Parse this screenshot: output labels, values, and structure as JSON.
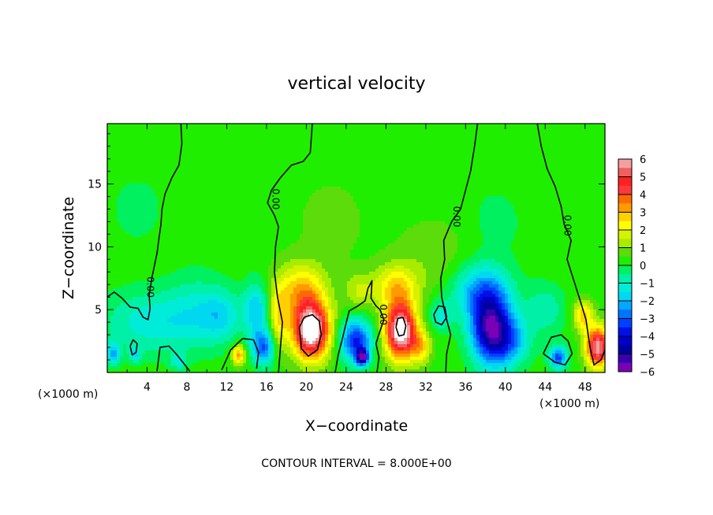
{
  "chart_data": {
    "type": "heatmap",
    "title": "vertical velocity",
    "xlabel": "X−coordinate",
    "ylabel": "Z−coordinate",
    "x_unit_label_left": "(×1000 m)",
    "x_unit_label_right": "(×1000 m)",
    "footer": "CONTOUR INTERVAL = 8.000E+00",
    "xlim": [
      0,
      50
    ],
    "ylim": [
      0,
      19.8
    ],
    "x_ticks": [
      4,
      8,
      12,
      16,
      20,
      24,
      28,
      32,
      36,
      40,
      44,
      48
    ],
    "y_ticks": [
      5,
      10,
      15
    ],
    "colorbar": {
      "range": [
        -6,
        6
      ],
      "tick_labels": [
        "6",
        "5",
        "4",
        "3",
        "2",
        "1",
        "0",
        "−1",
        "−2",
        "−3",
        "−4",
        "−5",
        "−6"
      ],
      "levels": [
        {
          "from": 5.5,
          "to": 6,
          "color": "#f4a0a0"
        },
        {
          "from": 5,
          "to": 5.5,
          "color": "#f06060"
        },
        {
          "from": 4.5,
          "to": 5,
          "color": "#ff2020"
        },
        {
          "from": 4,
          "to": 4.5,
          "color": "#ff3838"
        },
        {
          "from": 3.5,
          "to": 4,
          "color": "#ff6a00"
        },
        {
          "from": 3,
          "to": 3.5,
          "color": "#ff9a00"
        },
        {
          "from": 2.5,
          "to": 3,
          "color": "#ffd000"
        },
        {
          "from": 2,
          "to": 2.5,
          "color": "#ffff00"
        },
        {
          "from": 1.5,
          "to": 2,
          "color": "#d6f200"
        },
        {
          "from": 1,
          "to": 1.5,
          "color": "#a8ec00"
        },
        {
          "from": 0.5,
          "to": 1,
          "color": "#5cdc0a"
        },
        {
          "from": 0,
          "to": 0.5,
          "color": "#20ee00"
        },
        {
          "from": -0.5,
          "to": 0,
          "color": "#00f060"
        },
        {
          "from": -1,
          "to": -0.5,
          "color": "#00f0a8"
        },
        {
          "from": -1.5,
          "to": -1,
          "color": "#00ecd8"
        },
        {
          "from": -2,
          "to": -1.5,
          "color": "#00d8f0"
        },
        {
          "from": -2.5,
          "to": -2,
          "color": "#00a8ff"
        },
        {
          "from": -3,
          "to": -2.5,
          "color": "#0074ff"
        },
        {
          "from": -3.5,
          "to": -3,
          "color": "#0040ff"
        },
        {
          "from": -4,
          "to": -3.5,
          "color": "#0010e8"
        },
        {
          "from": -4.5,
          "to": -4,
          "color": "#0000c8"
        },
        {
          "from": -5,
          "to": -4.5,
          "color": "#0000a0"
        },
        {
          "from": -5.5,
          "to": -5,
          "color": "#3800b0"
        },
        {
          "from": -6,
          "to": -5.5,
          "color": "#7a00b8"
        }
      ],
      "overflow_high_color": "#ffffff"
    },
    "background_value": 0.3,
    "features": [
      {
        "x": 20.5,
        "z": 3.3,
        "amp": 6.8,
        "sx": 1.8,
        "sz": 2.2
      },
      {
        "x": 19.5,
        "z": 6.5,
        "amp": 2.6,
        "sx": 2.5,
        "sz": 2.2
      },
      {
        "x": 17.2,
        "z": 4.2,
        "amp": 2.0,
        "sx": 1.0,
        "sz": 2.5
      },
      {
        "x": 29.5,
        "z": 3.3,
        "amp": 6.5,
        "sx": 1.6,
        "sz": 2.2
      },
      {
        "x": 29.0,
        "z": 6.8,
        "amp": 2.2,
        "sx": 2.2,
        "sz": 1.8
      },
      {
        "x": 31.5,
        "z": 2.0,
        "amp": 2.0,
        "sx": 1.0,
        "sz": 1.3
      },
      {
        "x": 49.3,
        "z": 2.0,
        "amp": 5.5,
        "sx": 1.2,
        "sz": 1.6
      },
      {
        "x": 47.8,
        "z": 4.5,
        "amp": 2.5,
        "sx": 1.0,
        "sz": 1.2
      },
      {
        "x": 13.2,
        "z": 1.4,
        "amp": 3.0,
        "sx": 0.7,
        "sz": 0.8
      },
      {
        "x": 25.3,
        "z": 6.5,
        "amp": 1.2,
        "sx": 1.5,
        "sz": 1.5
      },
      {
        "x": 33.0,
        "z": 9.0,
        "amp": 0.6,
        "sx": 4.0,
        "sz": 3.0
      },
      {
        "x": 38.5,
        "z": 3.5,
        "amp": -5.2,
        "sx": 2.0,
        "sz": 2.8
      },
      {
        "x": 37.5,
        "z": 6.5,
        "amp": -2.4,
        "sx": 3.0,
        "sz": 2.2
      },
      {
        "x": 40.5,
        "z": 2.5,
        "amp": -2.2,
        "sx": 2.0,
        "sz": 2.0
      },
      {
        "x": 25.0,
        "z": 2.5,
        "amp": -4.0,
        "sx": 1.6,
        "sz": 1.7
      },
      {
        "x": 25.6,
        "z": 1.2,
        "amp": -5.0,
        "sx": 0.6,
        "sz": 0.6
      },
      {
        "x": 15.0,
        "z": 5.0,
        "amp": -2.2,
        "sx": 1.3,
        "sz": 2.2
      },
      {
        "x": 15.7,
        "z": 2.0,
        "amp": -3.2,
        "sx": 1.2,
        "sz": 1.4
      },
      {
        "x": 4.5,
        "z": 4.0,
        "amp": -1.6,
        "sx": 5.0,
        "sz": 2.5
      },
      {
        "x": 9.0,
        "z": 5.0,
        "amp": -1.0,
        "sx": 3.0,
        "sz": 3.0
      },
      {
        "x": 11.5,
        "z": 4.5,
        "amp": -1.5,
        "sx": 2.0,
        "sz": 2.0
      },
      {
        "x": 33.5,
        "z": 4.5,
        "amp": -1.4,
        "sx": 1.2,
        "sz": 1.2
      },
      {
        "x": 45.3,
        "z": 1.2,
        "amp": -3.5,
        "sx": 0.9,
        "sz": 0.9
      },
      {
        "x": 44.0,
        "z": 5.0,
        "amp": -1.2,
        "sx": 2.0,
        "sz": 2.0
      },
      {
        "x": 0.6,
        "z": 1.5,
        "amp": -2.2,
        "sx": 0.7,
        "sz": 0.9
      },
      {
        "x": 2.8,
        "z": 1.4,
        "amp": -1.5,
        "sx": 0.6,
        "sz": 0.6
      },
      {
        "x": 7.2,
        "z": 0.9,
        "amp": -1.4,
        "sx": 0.8,
        "sz": 0.6
      },
      {
        "x": 22.5,
        "z": 12.0,
        "amp": 0.5,
        "sx": 3.0,
        "sz": 3.0
      },
      {
        "x": 3.0,
        "z": 13.0,
        "amp": -0.5,
        "sx": 3.0,
        "sz": 3.0
      },
      {
        "x": 39.0,
        "z": 12.0,
        "amp": -0.5,
        "sx": 3.0,
        "sz": 3.0
      }
    ],
    "contour_label": "0.00",
    "contour_lines": [
      [
        [
          0,
          6.0
        ],
        [
          0.7,
          6.4
        ],
        [
          1.5,
          5.9
        ],
        [
          2.3,
          5.2
        ],
        [
          3.1,
          5.1
        ],
        [
          3.6,
          4.4
        ],
        [
          4.1,
          4.2
        ],
        [
          4.3,
          5.1
        ],
        [
          4.2,
          6.2
        ],
        [
          4.5,
          7.6
        ],
        [
          5.0,
          9.5
        ],
        [
          5.2,
          10.7
        ],
        [
          5.4,
          11.8
        ],
        [
          5.5,
          13.0
        ],
        [
          5.8,
          14.2
        ],
        [
          6.5,
          15.5
        ],
        [
          7.2,
          16.5
        ],
        [
          7.5,
          18.2
        ],
        [
          7.4,
          19.8
        ]
      ],
      [
        [
          17.2,
          0
        ],
        [
          17.4,
          2.0
        ],
        [
          17.6,
          4.0
        ],
        [
          17.1,
          6.0
        ],
        [
          16.8,
          8.0
        ],
        [
          16.9,
          10.0
        ],
        [
          17.2,
          11.6
        ],
        [
          16.8,
          12.5
        ],
        [
          16.1,
          13.5
        ],
        [
          16.5,
          14.5
        ],
        [
          17.4,
          15.5
        ],
        [
          18.5,
          16.5
        ],
        [
          19.7,
          16.8
        ],
        [
          20.4,
          17.5
        ],
        [
          20.6,
          19.8
        ]
      ],
      [
        [
          22.9,
          0
        ],
        [
          23.2,
          1.4
        ],
        [
          23.6,
          2.6
        ],
        [
          23.9,
          3.6
        ],
        [
          24.3,
          4.9
        ],
        [
          25.2,
          5.3
        ],
        [
          25.9,
          5.7
        ],
        [
          26.2,
          6.7
        ],
        [
          26.6,
          7.3
        ],
        [
          26.5,
          5.9
        ],
        [
          27.0,
          5.3
        ],
        [
          27.4,
          5.0
        ],
        [
          27.8,
          4.2
        ],
        [
          27.4,
          3.3
        ],
        [
          27.0,
          2.3
        ],
        [
          27.3,
          1.2
        ],
        [
          27.1,
          0
        ]
      ],
      [
        [
          34.0,
          0
        ],
        [
          34.1,
          1.5
        ],
        [
          34.5,
          3.0
        ],
        [
          34.0,
          4.5
        ],
        [
          33.6,
          6.0
        ],
        [
          33.5,
          7.5
        ],
        [
          33.9,
          9.0
        ],
        [
          33.8,
          10.5
        ],
        [
          34.6,
          12.0
        ],
        [
          35.5,
          13.0
        ],
        [
          36.0,
          14.5
        ],
        [
          36.5,
          16.0
        ],
        [
          36.9,
          18.0
        ],
        [
          37.2,
          19.8
        ]
      ],
      [
        [
          43.2,
          19.8
        ],
        [
          43.6,
          18.0
        ],
        [
          44.2,
          16.2
        ],
        [
          45.0,
          14.8
        ],
        [
          45.6,
          13.2
        ],
        [
          45.9,
          11.8
        ],
        [
          46.6,
          10.5
        ],
        [
          46.2,
          9.0
        ],
        [
          46.8,
          7.5
        ],
        [
          47.6,
          5.5
        ],
        [
          48.1,
          4.2
        ],
        [
          48.5,
          2.0
        ],
        [
          48.9,
          0.6
        ],
        [
          49.6,
          1.0
        ],
        [
          50,
          1.8
        ]
      ],
      [
        [
          19.3,
          3.6
        ],
        [
          19.8,
          4.4
        ],
        [
          20.6,
          4.6
        ],
        [
          21.3,
          4.1
        ],
        [
          21.5,
          3.0
        ],
        [
          21.1,
          1.8
        ],
        [
          20.2,
          1.3
        ],
        [
          19.5,
          1.9
        ],
        [
          19.3,
          3.6
        ]
      ],
      [
        [
          29.0,
          3.6
        ],
        [
          29.2,
          4.3
        ],
        [
          29.7,
          4.4
        ],
        [
          30.0,
          3.7
        ],
        [
          29.8,
          3.0
        ],
        [
          29.3,
          2.9
        ],
        [
          29.0,
          3.6
        ]
      ],
      [
        [
          32.8,
          4.6
        ],
        [
          33.3,
          5.3
        ],
        [
          33.9,
          5.2
        ],
        [
          34.1,
          4.4
        ],
        [
          33.6,
          3.8
        ],
        [
          33.0,
          4.0
        ],
        [
          32.8,
          4.6
        ]
      ],
      [
        [
          2.3,
          2.1
        ],
        [
          2.6,
          2.6
        ],
        [
          3.0,
          2.3
        ],
        [
          2.9,
          1.6
        ],
        [
          2.5,
          1.4
        ],
        [
          2.3,
          2.1
        ]
      ],
      [
        [
          5.0,
          0.1
        ],
        [
          5.3,
          2.0
        ],
        [
          6.2,
          2.1
        ],
        [
          6.9,
          1.5
        ],
        [
          7.7,
          0.7
        ],
        [
          8.3,
          0.1
        ]
      ],
      [
        [
          11.5,
          0.2
        ],
        [
          12.4,
          1.8
        ],
        [
          13.6,
          2.7
        ],
        [
          14.7,
          2.6
        ],
        [
          15.2,
          1.6
        ],
        [
          15.0,
          0.3
        ]
      ],
      [
        [
          43.8,
          1.5
        ],
        [
          44.6,
          2.8
        ],
        [
          45.6,
          3.0
        ],
        [
          46.3,
          2.5
        ],
        [
          46.7,
          1.5
        ],
        [
          46.0,
          0.6
        ],
        [
          45.0,
          0.8
        ],
        [
          43.8,
          1.5
        ]
      ]
    ],
    "contour_label_positions": [
      [
        4.0,
        6.8,
        90
      ],
      [
        16.6,
        13.8,
        90
      ],
      [
        27.4,
        4.6,
        90
      ],
      [
        34.8,
        12.4,
        90
      ],
      [
        45.9,
        11.7,
        90
      ]
    ]
  }
}
